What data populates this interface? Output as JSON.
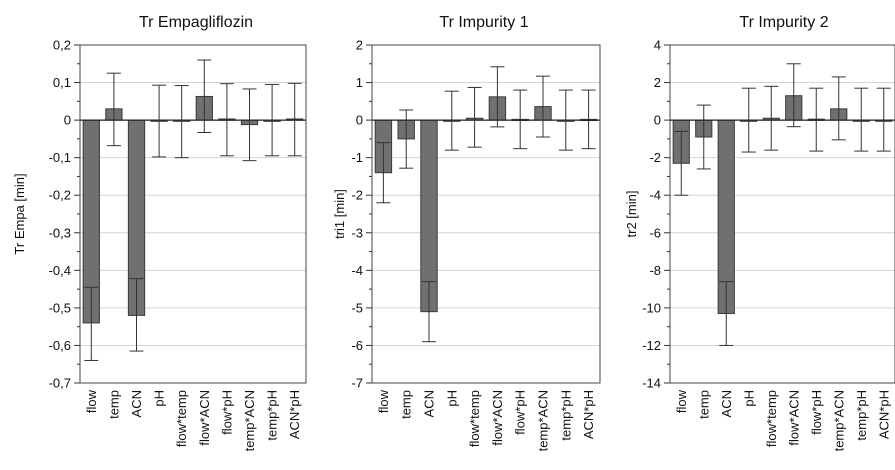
{
  "chart_data": [
    {
      "type": "bar",
      "title": "Tr Empagliflozin",
      "ylabel": "Tr Empa [min]",
      "xlabel": "",
      "categories": [
        "flow",
        "temp",
        "ACN",
        "pH",
        "flow*temp",
        "flow*ACN",
        "flow*pH",
        "temp*ACN",
        "temp*pH",
        "ACN*pH"
      ],
      "values": [
        -0.54,
        0.03,
        -0.52,
        0.0,
        0.0,
        0.063,
        0.003,
        -0.012,
        0.0,
        0.003
      ],
      "error_low": [
        -0.64,
        -0.068,
        -0.615,
        -0.098,
        -0.1,
        -0.033,
        -0.095,
        -0.108,
        -0.095,
        -0.095
      ],
      "error_high": [
        -0.445,
        0.125,
        -0.422,
        0.093,
        0.092,
        0.16,
        0.097,
        0.083,
        0.095,
        0.098
      ],
      "ylim": [
        -0.7,
        0.2
      ],
      "yticks": [
        0.2,
        0.1,
        0,
        -0.1,
        -0.2,
        -0.3,
        -0.4,
        -0.5,
        -0.6,
        -0.7
      ],
      "ytick_labels": [
        "0,2",
        "0,1",
        "0",
        "-0,1",
        "-0,2",
        "-0,3",
        "-0,4",
        "-0,5",
        "-0,6",
        "-0,7"
      ],
      "grid": true,
      "bar_color": "#707070"
    },
    {
      "type": "bar",
      "title": "Tr Impurity 1",
      "ylabel": "tri1 [min]",
      "xlabel": "",
      "categories": [
        "flow",
        "temp",
        "ACN",
        "pH",
        "flow*temp",
        "flow*ACN",
        "flow*pH",
        "temp*ACN",
        "temp*pH",
        "ACN*pH"
      ],
      "values": [
        -1.4,
        -0.5,
        -5.1,
        0.0,
        0.05,
        0.62,
        0.02,
        0.36,
        0.0,
        0.02
      ],
      "error_low": [
        -2.2,
        -1.28,
        -5.9,
        -0.8,
        -0.72,
        -0.18,
        -0.76,
        -0.45,
        -0.8,
        -0.76
      ],
      "error_high": [
        -0.6,
        0.27,
        -4.3,
        0.77,
        0.87,
        1.42,
        0.8,
        1.17,
        0.8,
        0.8
      ],
      "ylim": [
        -7,
        2
      ],
      "yticks": [
        2,
        1,
        0,
        -1,
        -2,
        -3,
        -4,
        -5,
        -6,
        -7
      ],
      "ytick_labels": [
        "2",
        "1",
        "0",
        "-1",
        "-2",
        "-3",
        "-4",
        "-5",
        "-6",
        "-7"
      ],
      "grid": true,
      "bar_color": "#707070"
    },
    {
      "type": "bar",
      "title": "Tr Impurity 2",
      "ylabel": "tr2 [min]",
      "xlabel": "",
      "categories": [
        "flow",
        "temp",
        "ACN",
        "pH",
        "flow*temp",
        "flow*ACN",
        "flow*pH",
        "temp*ACN",
        "temp*pH",
        "ACN*pH"
      ],
      "values": [
        -2.3,
        -0.9,
        -10.3,
        0.0,
        0.1,
        1.3,
        0.05,
        0.6,
        0.0,
        0.0
      ],
      "error_low": [
        -4.0,
        -2.6,
        -12.0,
        -1.7,
        -1.6,
        -0.35,
        -1.65,
        -1.05,
        -1.65,
        -1.65
      ],
      "error_high": [
        -0.6,
        0.8,
        -8.6,
        1.7,
        1.8,
        3.0,
        1.7,
        2.3,
        1.7,
        1.7
      ],
      "ylim": [
        -14,
        4
      ],
      "yticks": [
        4,
        2,
        0,
        -2,
        -4,
        -6,
        -8,
        -10,
        -12,
        -14
      ],
      "ytick_labels": [
        "4",
        "2",
        "0",
        "-2",
        "-4",
        "-6",
        "-8",
        "-10",
        "-12",
        "-14"
      ],
      "grid": true,
      "bar_color": "#707070"
    }
  ]
}
